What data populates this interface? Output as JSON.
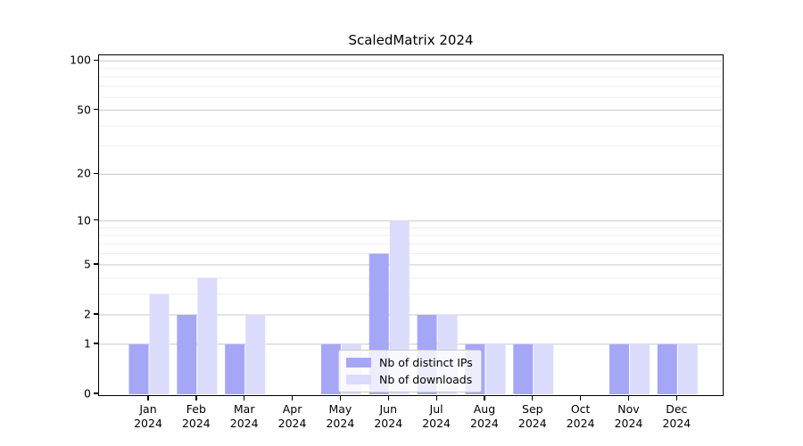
{
  "title": "ScaledMatrix 2024",
  "chart_data": {
    "type": "bar",
    "title": "ScaledMatrix 2024",
    "categories": [
      "Jan 2024",
      "Feb 2024",
      "Mar 2024",
      "Apr 2024",
      "May 2024",
      "Jun 2024",
      "Jul 2024",
      "Aug 2024",
      "Sep 2024",
      "Oct 2024",
      "Nov 2024",
      "Dec 2024"
    ],
    "series": [
      {
        "name": "Nb of distinct IPs",
        "color": "#a6a6f7",
        "values": [
          1,
          2,
          1,
          0,
          1,
          6,
          2,
          1,
          1,
          0,
          1,
          1
        ]
      },
      {
        "name": "Nb of downloads",
        "color": "#dbdbfb",
        "values": [
          3,
          4,
          2,
          0,
          1,
          10,
          2,
          1,
          1,
          0,
          1,
          1
        ]
      }
    ],
    "yscale": "log1p",
    "yticks": [
      0,
      1,
      2,
      5,
      10,
      20,
      50,
      100
    ],
    "yminorticks": [
      3,
      4,
      6,
      7,
      8,
      9,
      30,
      40,
      60,
      70,
      80,
      90
    ],
    "ylim": [
      0,
      111
    ],
    "xlabel": "",
    "ylabel": "",
    "grid": "horizontal major+minor",
    "legend_position": "lower center inside plot"
  },
  "colors": {
    "bar_ips": "#a6a6f7",
    "bar_downloads": "#dbdbfb",
    "grid_major": "#c9c9c9",
    "grid_minor": "#ebebeb",
    "axis": "#000000",
    "legend_border": "#c9c9c9",
    "background": "#ffffff"
  },
  "legend": {
    "items": [
      {
        "label": "Nb of distinct IPs"
      },
      {
        "label": "Nb of downloads"
      }
    ]
  }
}
